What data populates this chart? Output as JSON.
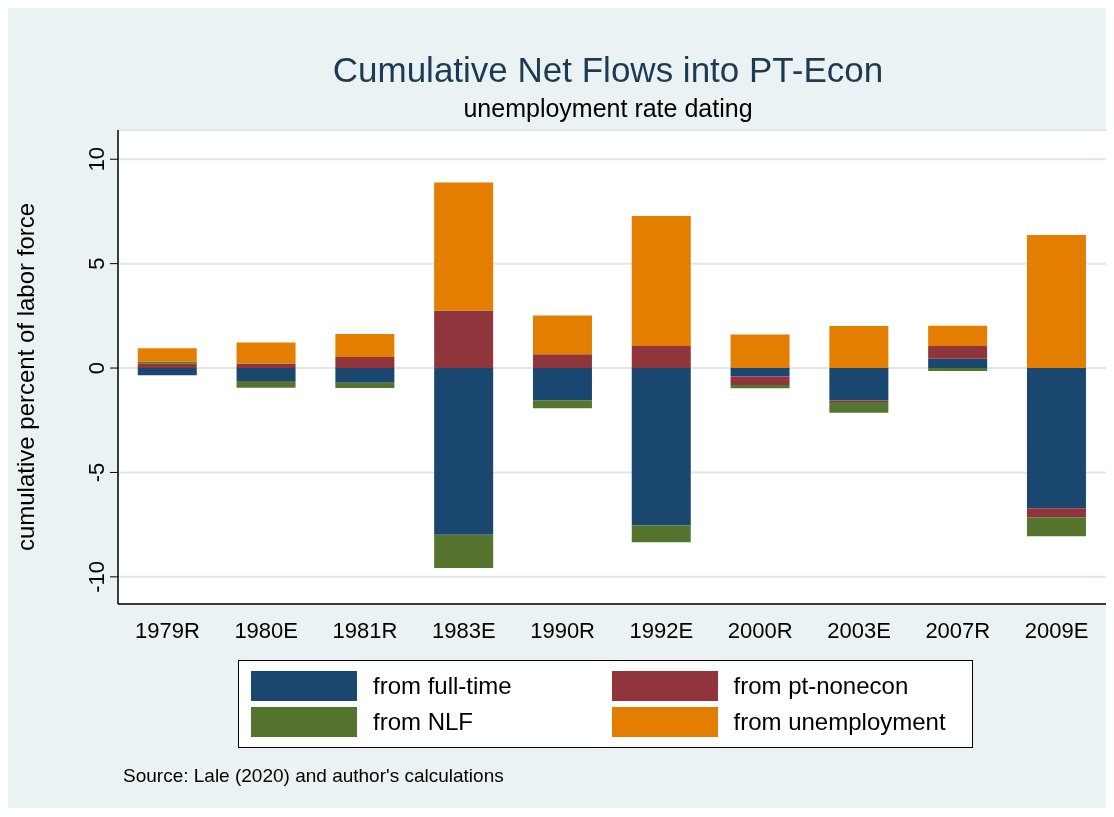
{
  "chart_data": {
    "type": "bar",
    "title": "Cumulative Net Flows into PT-Econ",
    "subtitle": "unemployment rate dating",
    "ylabel": "cumulative percent of labor force",
    "categories": [
      "1979R",
      "1980E",
      "1981R",
      "1983E",
      "1990R",
      "1992E",
      "2000R",
      "2003E",
      "2007R",
      "2009E"
    ],
    "series": [
      {
        "name": "from full-time",
        "color": "#1a476f",
        "values": [
          -0.35,
          -0.62,
          -0.7,
          -7.98,
          -1.55,
          -7.54,
          -0.41,
          -1.56,
          0.45,
          -6.71
        ]
      },
      {
        "name": "from pt-nonecon",
        "color": "#90353b",
        "values": [
          0.2,
          0.22,
          0.53,
          2.75,
          0.66,
          1.05,
          -0.4,
          -0.07,
          0.6,
          -0.43
        ]
      },
      {
        "name": "from NLF",
        "color": "#55752f",
        "values": [
          0.1,
          -0.32,
          -0.26,
          -1.6,
          -0.38,
          -0.8,
          -0.16,
          -0.51,
          -0.14,
          -0.92
        ]
      },
      {
        "name": "from unemployment",
        "color": "#e37e00",
        "values": [
          0.65,
          1.0,
          1.1,
          6.13,
          1.86,
          6.23,
          1.61,
          2.01,
          0.98,
          6.37
        ]
      }
    ],
    "stacked": true,
    "ylim": [
      -11.3,
      11.4
    ],
    "yticks": [
      -10,
      -5,
      0,
      5,
      10
    ],
    "grid": "y",
    "legend": "bottom",
    "annotations": [
      "Source: Lale (2020) and author's calculations"
    ]
  }
}
